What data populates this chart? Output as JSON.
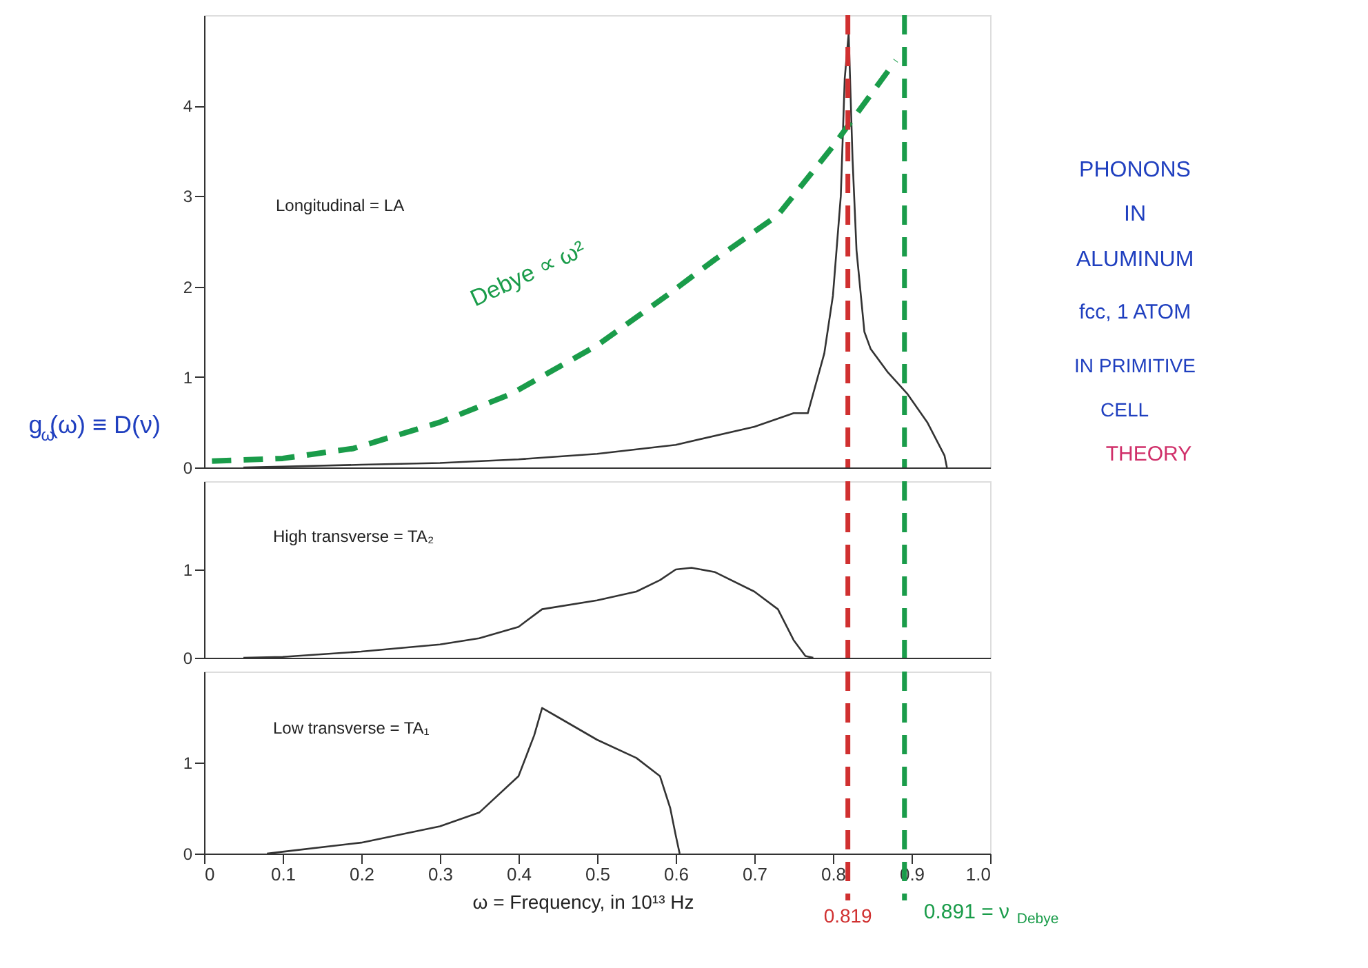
{
  "chart_data": [
    {
      "type": "line",
      "ylabel": "g$_{ω}$(ω) ≡ D(ν)",
      "xlim": [
        0,
        1.0
      ],
      "ylim": [
        0,
        5
      ],
      "xticks": [
        0,
        0.1,
        0.2,
        0.3,
        0.4,
        0.5,
        0.6,
        0.7,
        0.8,
        0.9,
        1.0
      ],
      "yticks": [
        0,
        1,
        2,
        3,
        4
      ],
      "tick_labels": "y",
      "grid": false,
      "marker": "none",
      "annotations": [
        "Longitudinal = LA",
        "Debye ∝ ω²",
        "PHONONS",
        "IN",
        "ALUMINUM",
        "fcc, 1 ATOM",
        "IN PRIMITIVE",
        "CELL",
        "THEORY"
      ],
      "series": [
        {
          "color": "#333333",
          "line_style": "solid",
          "x": [
            0.05,
            0.1,
            0.2,
            0.3,
            0.4,
            0.5,
            0.6,
            0.7,
            0.75,
            0.768,
            0.789,
            0.8,
            0.81,
            0.815,
            0.82,
            0.825,
            0.83,
            0.84,
            0.848,
            0.87,
            0.895,
            0.92,
            0.942,
            0.945
          ],
          "values": [
            0,
            0.01,
            0.03,
            0.05,
            0.09,
            0.15,
            0.25,
            0.45,
            0.6,
            0.6,
            1.26,
            1.9,
            3.0,
            4.3,
            4.8,
            3.4,
            2.4,
            1.5,
            1.31,
            1.05,
            0.81,
            0.5,
            0.13,
            0
          ]
        },
        {
          "color": "#1a9c4a",
          "line_style": "dashed",
          "x": [
            0.01,
            0.1,
            0.19,
            0.3,
            0.39,
            0.5,
            0.59,
            0.65,
            0.73,
            0.8,
            0.88
          ],
          "values": [
            0.07,
            0.1,
            0.21,
            0.5,
            0.81,
            1.35,
            1.91,
            2.3,
            2.79,
            3.55,
            4.5
          ]
        }
      ],
      "ref_lines": [
        {
          "axis": "x",
          "value": 0.819,
          "color": "#d03030",
          "line_style": "dashed"
        },
        {
          "axis": "x",
          "value": 0.891,
          "color": "#1a9c4a",
          "line_style": "dashed"
        }
      ]
    },
    {
      "type": "line",
      "xlim": [
        0,
        1.0
      ],
      "ylim": [
        0,
        2
      ],
      "xticks": [
        0,
        0.1,
        0.2,
        0.3,
        0.4,
        0.5,
        0.6,
        0.7,
        0.8,
        0.9,
        1.0
      ],
      "yticks": [
        0,
        1
      ],
      "tick_labels": "y",
      "grid": false,
      "marker": "none",
      "annotations": [
        "High transverse = TA₂"
      ],
      "series": [
        {
          "color": "#333333",
          "line_style": "solid",
          "x": [
            0.05,
            0.1,
            0.2,
            0.3,
            0.35,
            0.4,
            0.43,
            0.5,
            0.55,
            0.58,
            0.6,
            0.62,
            0.65,
            0.7,
            0.73,
            0.75,
            0.765,
            0.775
          ],
          "values": [
            0,
            0.01,
            0.07,
            0.15,
            0.22,
            0.35,
            0.55,
            0.65,
            0.75,
            0.88,
            1.0,
            1.02,
            0.97,
            0.75,
            0.55,
            0.2,
            0.02,
            0
          ]
        }
      ],
      "ref_lines": [
        {
          "axis": "x",
          "value": 0.819,
          "color": "#d03030",
          "line_style": "dashed"
        },
        {
          "axis": "x",
          "value": 0.891,
          "color": "#1a9c4a",
          "line_style": "dashed"
        }
      ]
    },
    {
      "type": "line",
      "xlabel": "ω = Frequency, in 10¹³ Hz",
      "xlim": [
        0,
        1.0
      ],
      "ylim": [
        0,
        2
      ],
      "xticks": [
        0,
        0.1,
        0.2,
        0.3,
        0.4,
        0.5,
        0.6,
        0.7,
        0.8,
        0.9,
        {
          "value": 1.0,
          "label": "1.0"
        }
      ],
      "yticks": [
        0,
        1
      ],
      "grid": false,
      "marker": "none",
      "annotations": [
        "Low transverse = TA₁"
      ],
      "series": [
        {
          "color": "#333333",
          "line_style": "solid",
          "x": [
            0.08,
            0.1,
            0.2,
            0.3,
            0.35,
            0.4,
            0.42,
            0.43,
            0.45,
            0.5,
            0.55,
            0.58,
            0.593,
            0.6,
            0.605
          ],
          "values": [
            0,
            0.02,
            0.12,
            0.3,
            0.45,
            0.85,
            1.3,
            1.6,
            1.5,
            1.25,
            1.05,
            0.85,
            0.5,
            0.2,
            0
          ]
        }
      ],
      "ref_lines": [
        {
          "axis": "x",
          "value": 0.819,
          "label": "0.819",
          "color": "#d03030",
          "line_style": "dashed"
        },
        {
          "axis": "x",
          "value": 0.891,
          "label": "0.891 = ν$_{Debye}$",
          "color": "#1a9c4a",
          "line_style": "dashed"
        }
      ]
    }
  ]
}
